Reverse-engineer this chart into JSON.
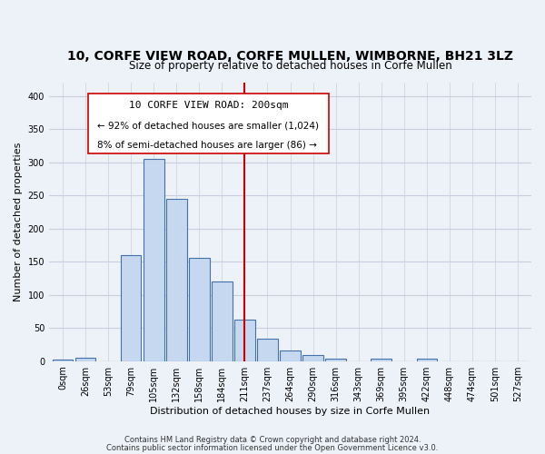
{
  "title": "10, CORFE VIEW ROAD, CORFE MULLEN, WIMBORNE, BH21 3LZ",
  "subtitle": "Size of property relative to detached houses in Corfe Mullen",
  "xlabel": "Distribution of detached houses by size in Corfe Mullen",
  "ylabel": "Number of detached properties",
  "bar_values": [
    2,
    5,
    0,
    160,
    305,
    245,
    155,
    120,
    62,
    34,
    16,
    9,
    4,
    0,
    3,
    0,
    4,
    0,
    0,
    0,
    0
  ],
  "categories": [
    "0sqm",
    "26sqm",
    "53sqm",
    "79sqm",
    "105sqm",
    "132sqm",
    "158sqm",
    "184sqm",
    "211sqm",
    "237sqm",
    "264sqm",
    "290sqm",
    "316sqm",
    "343sqm",
    "369sqm",
    "395sqm",
    "422sqm",
    "448sqm",
    "474sqm",
    "501sqm",
    "527sqm"
  ],
  "bar_color": "#c5d8ef",
  "bar_edge_color": "#4472a8",
  "bar_edge_width": 0.8,
  "vline_x_idx": 8.5,
  "vline_color": "#cc0000",
  "vline_linewidth": 1.5,
  "annot_line1": "10 CORFE VIEW ROAD: 200sqm",
  "annot_line2": "← 92% of detached houses are smaller (1,024)",
  "annot_line3": "8% of semi-detached houses are larger (86) →",
  "ylim": [
    0,
    420
  ],
  "yticks": [
    0,
    50,
    100,
    150,
    200,
    250,
    300,
    350,
    400
  ],
  "figsize": [
    6.0,
    5.0
  ],
  "dpi": 100,
  "bg_color": "#edf1f8",
  "grid_color": "#c8d0e0",
  "footer_line1": "Contains HM Land Registry data © Crown copyright and database right 2024.",
  "footer_line2": "Contains public sector information licensed under the Open Government Licence v3.0.",
  "title_fontsize": 10,
  "subtitle_fontsize": 8.5,
  "axis_label_fontsize": 8,
  "tick_fontsize": 7,
  "footer_fontsize": 6,
  "annot_fontsize": 8
}
